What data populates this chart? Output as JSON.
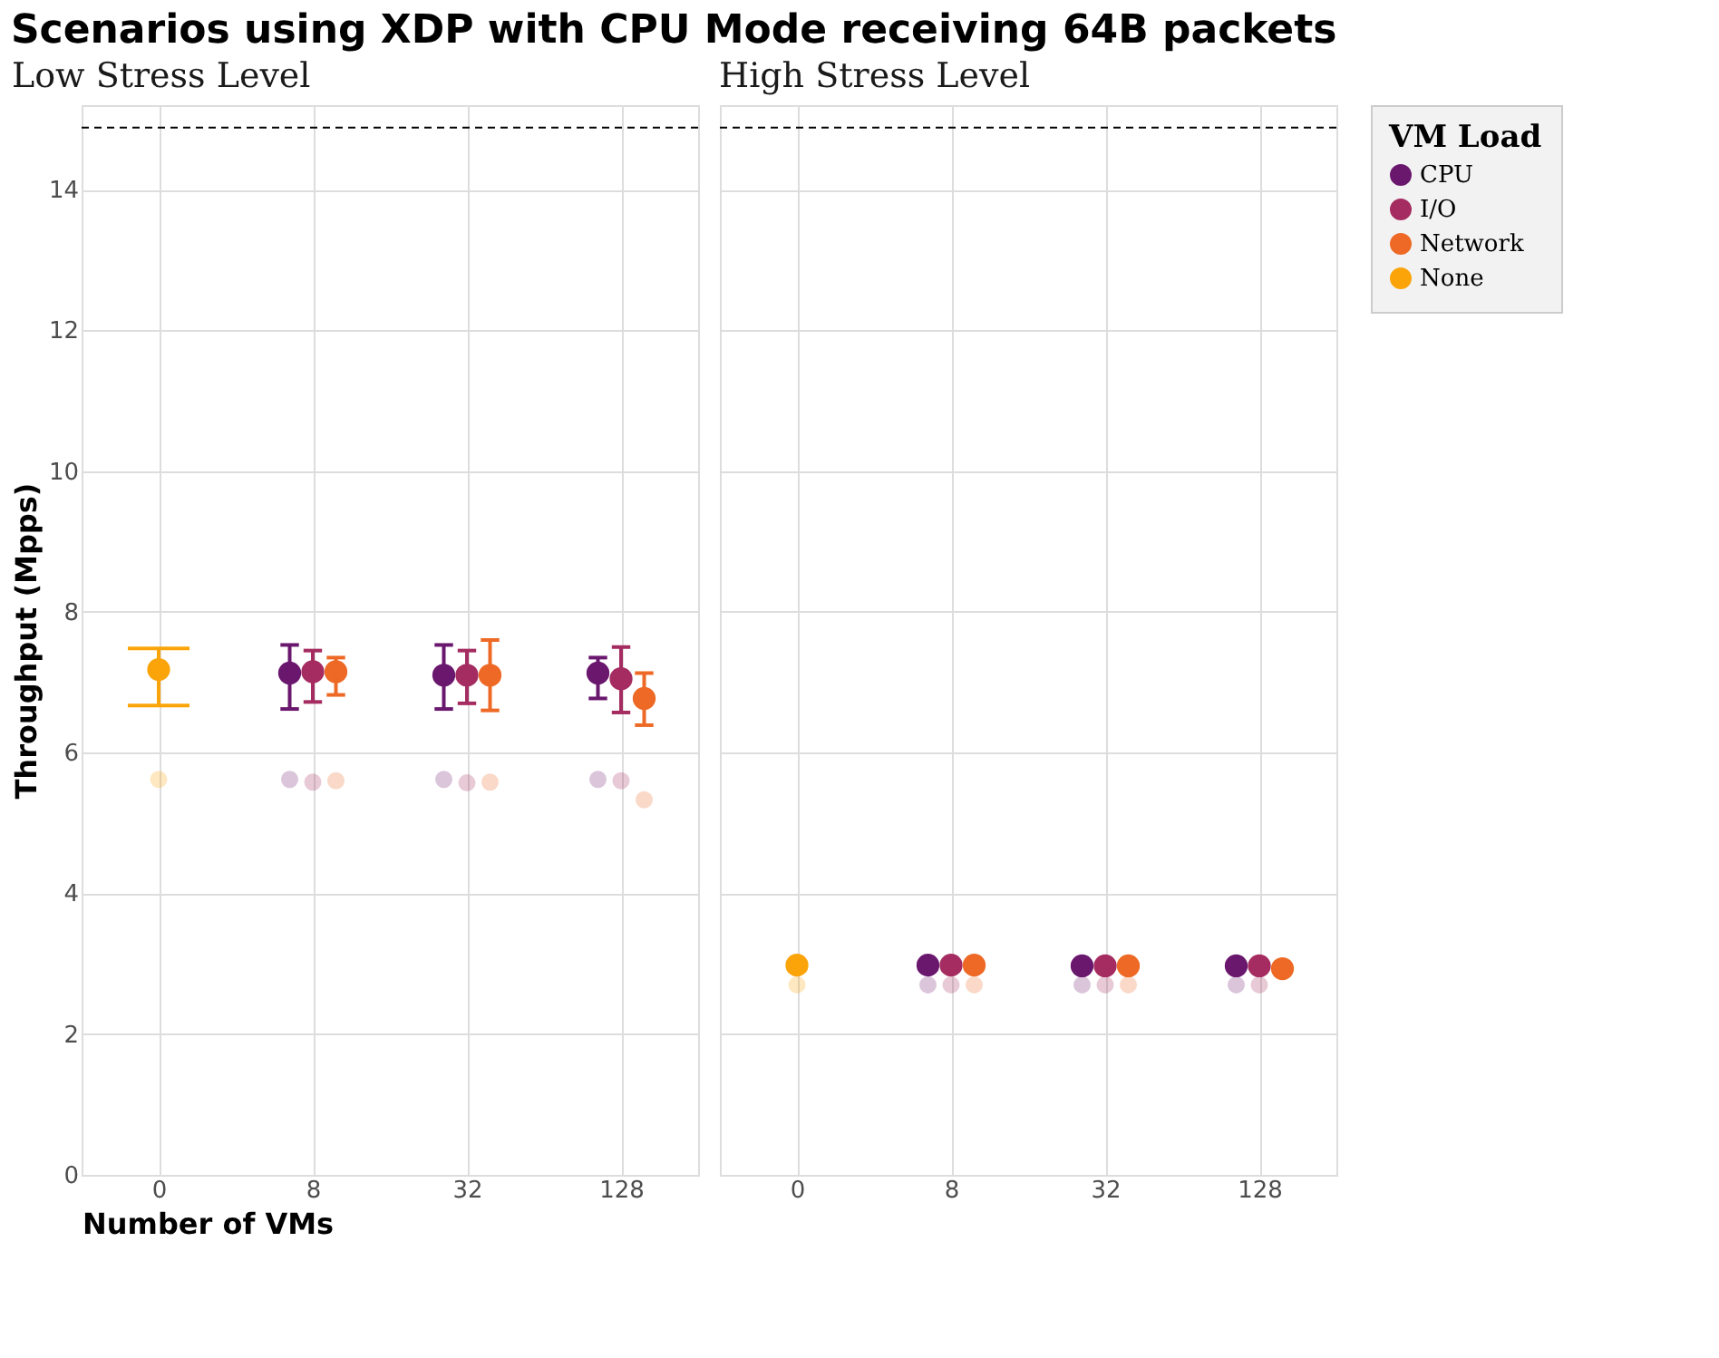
{
  "chart_data": [
    {
      "type": "scatter",
      "title": "Scenarios using XDP with CPU Mode receiving 64B packets",
      "subtitle": "Low Stress Level",
      "xlabel": "Number of VMs",
      "ylabel": "Throughput (Mpps)",
      "categories": [
        "0",
        "8",
        "32",
        "128"
      ],
      "ylim": [
        0,
        15.2
      ],
      "yticks": [
        0,
        2,
        4,
        6,
        8,
        10,
        12,
        14
      ],
      "grid": true,
      "marker": "circle",
      "legend": "right",
      "legend_title": "VM Load",
      "ref_lines": [
        {
          "axis": "y",
          "value": 14.88,
          "line_style": "dashed",
          "color": "#000000"
        }
      ],
      "series": [
        {
          "name": "CPU",
          "color": "#6a176e",
          "values": [
            null,
            7.13,
            7.1,
            7.13
          ],
          "errors": [
            null,
            [
              6.62,
              7.53
            ],
            [
              6.62,
              7.53
            ],
            [
              6.77,
              7.35
            ]
          ]
        },
        {
          "name": "I/O",
          "color": "#a52c60",
          "values": [
            null,
            7.15,
            7.1,
            7.05
          ],
          "errors": [
            null,
            [
              6.72,
              7.45
            ],
            [
              6.7,
              7.45
            ],
            [
              6.57,
              7.5
            ]
          ]
        },
        {
          "name": "Network",
          "color": "#ed6925",
          "values": [
            null,
            7.15,
            7.1,
            6.77
          ],
          "errors": [
            null,
            [
              6.82,
              7.35
            ],
            [
              6.6,
              7.6
            ],
            [
              6.39,
              7.13
            ]
          ]
        },
        {
          "name": "None",
          "color": "#fba40a",
          "values": [
            7.18,
            null,
            null,
            null
          ],
          "errors": [
            [
              6.67,
              7.48
            ],
            null,
            null,
            null
          ]
        },
        {
          "color": "#6a176e",
          "values": [
            null,
            5.62,
            5.62,
            5.62
          ]
        },
        {
          "color": "#a52c60",
          "values": [
            null,
            5.58,
            5.57,
            5.6
          ]
        },
        {
          "color": "#ed6925",
          "values": [
            null,
            5.6,
            5.58,
            5.33
          ]
        },
        {
          "color": "#fba40a",
          "values": [
            5.62,
            null,
            null,
            null
          ]
        }
      ]
    },
    {
      "type": "scatter",
      "subtitle": "High Stress Level",
      "categories": [
        "0",
        "8",
        "32",
        "128"
      ],
      "ylim": [
        0,
        15.2
      ],
      "yticks": [
        0,
        2,
        4,
        6,
        8,
        10,
        12,
        14
      ],
      "grid": true,
      "marker": "circle",
      "legend": "right",
      "tick_labels": "x",
      "ref_lines": [
        {
          "axis": "y",
          "value": 14.88,
          "line_style": "dashed",
          "color": "#000000"
        }
      ],
      "series": [
        {
          "name": "CPU",
          "color": "#6a176e",
          "values": [
            null,
            2.98,
            2.97,
            2.97
          ]
        },
        {
          "name": "I/O",
          "color": "#a52c60",
          "values": [
            null,
            2.98,
            2.97,
            2.97
          ]
        },
        {
          "name": "Network",
          "color": "#ed6925",
          "values": [
            null,
            2.98,
            2.97,
            2.93
          ]
        },
        {
          "name": "None",
          "color": "#fba40a",
          "values": [
            2.98,
            null,
            null,
            null
          ]
        },
        {
          "color": "#6a176e",
          "values": [
            null,
            2.7,
            2.7,
            2.7
          ]
        },
        {
          "color": "#a52c60",
          "values": [
            null,
            2.7,
            2.7,
            2.7
          ]
        },
        {
          "color": "#ed6925",
          "values": [
            null,
            2.7,
            2.7,
            null
          ]
        },
        {
          "color": "#fba40a",
          "values": [
            2.7,
            null,
            null,
            null
          ]
        }
      ]
    }
  ]
}
